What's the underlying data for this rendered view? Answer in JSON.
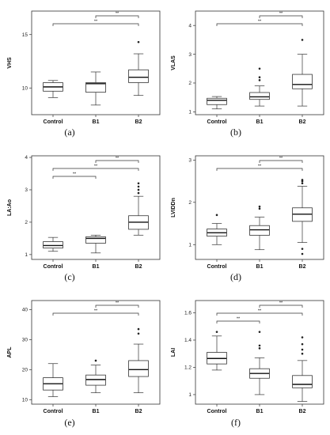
{
  "chart_data": [
    {
      "type": "box",
      "panel": "(a)",
      "ylabel": "VHS",
      "ylim": [
        7.5,
        17.2
      ],
      "yticks": [
        10,
        15
      ],
      "categories": [
        "Control",
        "B1",
        "B2"
      ],
      "series": [
        {
          "q1": 9.7,
          "median": 10.1,
          "q3": 10.5,
          "whisker_low": 9.1,
          "whisker_high": 10.7,
          "outliers": []
        },
        {
          "q1": 9.6,
          "median": 10.4,
          "q3": 10.5,
          "whisker_low": 8.4,
          "whisker_high": 11.5,
          "outliers": []
        },
        {
          "q1": 10.5,
          "median": 11.0,
          "q3": 11.7,
          "whisker_low": 9.3,
          "whisker_high": 13.2,
          "outliers": [
            14.3
          ]
        }
      ],
      "significance": [
        {
          "from": "B1",
          "to": "B2",
          "label": "**"
        },
        {
          "from": "Control",
          "to": "B2",
          "label": "**"
        }
      ]
    },
    {
      "type": "box",
      "panel": "(b)",
      "ylabel": "VLAS",
      "ylim": [
        0.9,
        4.5
      ],
      "yticks": [
        1,
        2,
        3,
        4
      ],
      "categories": [
        "Control",
        "B1",
        "B2"
      ],
      "series": [
        {
          "q1": 1.25,
          "median": 1.4,
          "q3": 1.47,
          "whisker_low": 1.1,
          "whisker_high": 1.53,
          "outliers": []
        },
        {
          "q1": 1.43,
          "median": 1.52,
          "q3": 1.67,
          "whisker_low": 1.2,
          "whisker_high": 1.9,
          "outliers": [
            2.1,
            2.2,
            2.5
          ]
        },
        {
          "q1": 1.8,
          "median": 1.95,
          "q3": 2.3,
          "whisker_low": 1.2,
          "whisker_high": 3.0,
          "outliers": [
            3.5
          ]
        }
      ],
      "significance": [
        {
          "from": "B1",
          "to": "B2",
          "label": "**"
        },
        {
          "from": "Control",
          "to": "B2",
          "label": "**"
        }
      ]
    },
    {
      "type": "box",
      "panel": "(c)",
      "ylabel": "LA:Ao",
      "ylim": [
        0.85,
        4.05
      ],
      "yticks": [
        1,
        2,
        3,
        4
      ],
      "categories": [
        "Control",
        "B1",
        "B2"
      ],
      "series": [
        {
          "q1": 1.2,
          "median": 1.28,
          "q3": 1.4,
          "whisker_low": 1.1,
          "whisker_high": 1.53,
          "outliers": []
        },
        {
          "q1": 1.35,
          "median": 1.5,
          "q3": 1.55,
          "whisker_low": 1.05,
          "whisker_high": 1.6,
          "outliers": []
        },
        {
          "q1": 1.78,
          "median": 2.0,
          "q3": 2.2,
          "whisker_low": 1.6,
          "whisker_high": 2.8,
          "outliers": [
            2.9,
            3.0,
            3.1,
            3.2
          ]
        }
      ],
      "significance": [
        {
          "from": "Control",
          "to": "B1",
          "label": "**"
        },
        {
          "from": "B1",
          "to": "B2",
          "label": "**"
        },
        {
          "from": "Control",
          "to": "B2",
          "label": "**"
        }
      ]
    },
    {
      "type": "box",
      "panel": "(d)",
      "ylabel": "LVIDDn",
      "ylim": [
        0.65,
        3.1
      ],
      "yticks": [
        1,
        2,
        3
      ],
      "categories": [
        "Control",
        "B1",
        "B2"
      ],
      "series": [
        {
          "q1": 1.2,
          "median": 1.28,
          "q3": 1.37,
          "whisker_low": 1.0,
          "whisker_high": 1.5,
          "outliers": [
            1.7
          ]
        },
        {
          "q1": 1.22,
          "median": 1.35,
          "q3": 1.45,
          "whisker_low": 0.88,
          "whisker_high": 1.65,
          "outliers": [
            1.85,
            1.9
          ]
        },
        {
          "q1": 1.55,
          "median": 1.72,
          "q3": 1.87,
          "whisker_low": 1.05,
          "whisker_high": 2.38,
          "outliers": [
            0.78,
            0.9,
            2.45,
            2.5,
            2.53
          ]
        }
      ],
      "significance": [
        {
          "from": "B1",
          "to": "B2",
          "label": "**"
        },
        {
          "from": "Control",
          "to": "B2",
          "label": "**"
        }
      ]
    },
    {
      "type": "box",
      "panel": "(e)",
      "ylabel": "APL",
      "ylim": [
        8.5,
        43
      ],
      "yticks": [
        10,
        20,
        30,
        40
      ],
      "categories": [
        "Control",
        "B1",
        "B2"
      ],
      "series": [
        {
          "q1": 13.2,
          "median": 15.3,
          "q3": 17.3,
          "whisker_low": 11.0,
          "whisker_high": 22.0,
          "outliers": []
        },
        {
          "q1": 14.8,
          "median": 16.7,
          "q3": 18.2,
          "whisker_low": 12.3,
          "whisker_high": 21.5,
          "outliers": [
            23.0
          ]
        },
        {
          "q1": 17.7,
          "median": 20.0,
          "q3": 23.0,
          "whisker_low": 12.3,
          "whisker_high": 28.5,
          "outliers": [
            32.0,
            33.5
          ]
        }
      ],
      "significance": [
        {
          "from": "B1",
          "to": "B2",
          "label": "**"
        },
        {
          "from": "Control",
          "to": "B2",
          "label": "**"
        }
      ]
    },
    {
      "type": "box",
      "panel": "(f)",
      "ylabel": "LAI",
      "ylim": [
        0.93,
        1.69
      ],
      "yticks": [
        1.0,
        1.2,
        1.4,
        1.6
      ],
      "categories": [
        "Control",
        "B1",
        "B2"
      ],
      "series": [
        {
          "q1": 1.225,
          "median": 1.265,
          "q3": 1.31,
          "whisker_low": 1.18,
          "whisker_high": 1.43,
          "outliers": [
            1.46
          ]
        },
        {
          "q1": 1.12,
          "median": 1.155,
          "q3": 1.19,
          "whisker_low": 1.0,
          "whisker_high": 1.27,
          "outliers": [
            1.34,
            1.36,
            1.46
          ]
        },
        {
          "q1": 1.05,
          "median": 1.075,
          "q3": 1.14,
          "whisker_low": 0.95,
          "whisker_high": 1.25,
          "outliers": [
            1.3,
            1.33,
            1.37,
            1.42
          ]
        }
      ],
      "significance": [
        {
          "from": "Control",
          "to": "B1",
          "label": "**"
        },
        {
          "from": "B1",
          "to": "B2",
          "label": "**"
        },
        {
          "from": "Control",
          "to": "B2",
          "label": "**"
        }
      ]
    }
  ]
}
